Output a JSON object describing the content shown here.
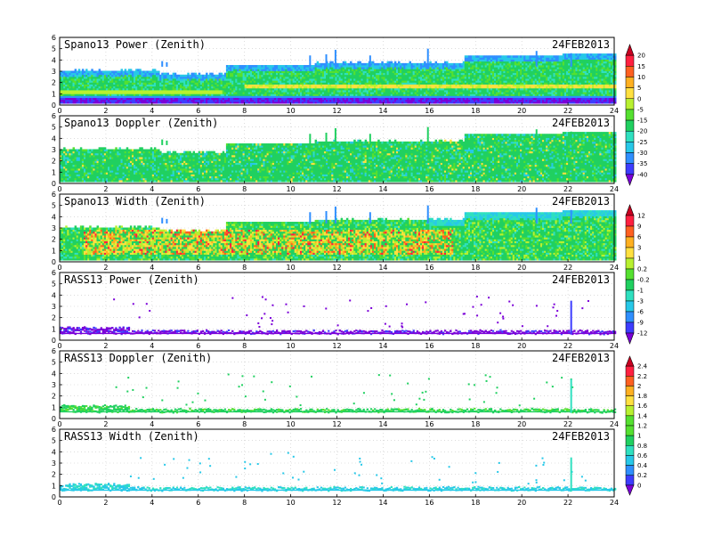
{
  "chart_data": {
    "type": "heatmap",
    "date": "24FEB2013",
    "x_axis": {
      "min": 0,
      "max": 24,
      "ticks": [
        0,
        2,
        4,
        6,
        8,
        10,
        12,
        14,
        16,
        18,
        20,
        22,
        24
      ]
    },
    "y_axis": {
      "min": 0,
      "max": 6,
      "ticks": [
        0,
        1,
        2,
        3,
        4,
        5,
        6
      ]
    },
    "grid": true,
    "panels": [
      {
        "title": "Spano13 Power (Zenith)",
        "date_label": "24FEB2013",
        "kind": "spano-power",
        "colorbar": 0
      },
      {
        "title": "Spano13 Doppler (Zenith)",
        "date_label": "24FEB2013",
        "kind": "spano-doppler",
        "colorbar": 0
      },
      {
        "title": "Spano13 Width (Zenith)",
        "date_label": "24FEB2013",
        "kind": "spano-width",
        "colorbar": 1
      },
      {
        "title": "RASS13 Power (Zenith)",
        "date_label": "24FEB2013",
        "kind": "rass-power",
        "colorbar": 1
      },
      {
        "title": "RASS13 Doppler (Zenith)",
        "date_label": "24FEB2013",
        "kind": "rass-doppler",
        "colorbar": 2
      },
      {
        "title": "RASS13 Width (Zenith)",
        "date_label": "24FEB2013",
        "kind": "rass-width",
        "colorbar": 2
      }
    ],
    "colorbars": [
      {
        "labels": [
          "20",
          "15",
          "10",
          "5",
          "0",
          "-5",
          "-15",
          "-20",
          "-25",
          "-30",
          "-35",
          "-40"
        ]
      },
      {
        "labels": [
          "12",
          "9",
          "6",
          "3",
          "1",
          "0.2",
          "-0.2",
          "-1",
          "-3",
          "-6",
          "-9",
          "-12"
        ]
      },
      {
        "labels": [
          "2.4",
          "2.2",
          "2",
          "1.8",
          "1.6",
          "1.4",
          "1.2",
          "1",
          "0.8",
          "0.6",
          "0.4",
          "0.2",
          "0"
        ]
      }
    ],
    "palette": [
      "#7b00d8",
      "#3d3dff",
      "#2f8fff",
      "#27c8e8",
      "#2fe0c0",
      "#20d060",
      "#55e030",
      "#b8f030",
      "#ffe040",
      "#ffb020",
      "#ff6020",
      "#ff2040",
      "#c80020"
    ]
  }
}
